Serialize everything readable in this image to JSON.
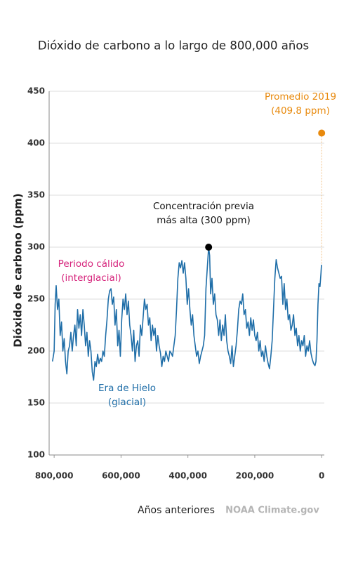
{
  "chart_data": {
    "type": "line",
    "title": "Dióxido de carbono a lo largo de 800,000 años",
    "xlabel": "Años anteriores",
    "ylabel": "Dióxido de carbono (ppm)",
    "source": "NOAA Climate.gov",
    "xlim": [
      815000,
      -8000
    ],
    "ylim": [
      100,
      450
    ],
    "xticks": [
      {
        "value": 800000,
        "label": "800,000"
      },
      {
        "value": 600000,
        "label": "600,000"
      },
      {
        "value": 400000,
        "label": "400,000"
      },
      {
        "value": 200000,
        "label": "200,000"
      },
      0
    ],
    "yticks": [
      100,
      150,
      200,
      250,
      300,
      350,
      400,
      450
    ],
    "grid": true,
    "x": [
      805000,
      800000,
      797000,
      794000,
      790000,
      786000,
      782000,
      778000,
      774000,
      770000,
      766000,
      762000,
      758000,
      754000,
      750000,
      746000,
      742000,
      738000,
      734000,
      730000,
      726000,
      722000,
      718000,
      714000,
      710000,
      706000,
      702000,
      698000,
      694000,
      690000,
      686000,
      682000,
      678000,
      674000,
      670000,
      666000,
      662000,
      658000,
      654000,
      650000,
      646000,
      642000,
      638000,
      634000,
      630000,
      626000,
      622000,
      618000,
      614000,
      610000,
      606000,
      602000,
      598000,
      594000,
      590000,
      586000,
      582000,
      578000,
      574000,
      570000,
      566000,
      562000,
      558000,
      554000,
      550000,
      546000,
      542000,
      538000,
      534000,
      530000,
      526000,
      522000,
      518000,
      514000,
      510000,
      506000,
      502000,
      498000,
      494000,
      490000,
      486000,
      482000,
      478000,
      474000,
      470000,
      466000,
      462000,
      458000,
      454000,
      450000,
      446000,
      442000,
      438000,
      434000,
      430000,
      426000,
      422000,
      418000,
      414000,
      410000,
      406000,
      402000,
      398000,
      394000,
      390000,
      386000,
      382000,
      378000,
      374000,
      370000,
      366000,
      362000,
      358000,
      354000,
      350000,
      346000,
      342000,
      338000,
      335000,
      332000,
      328000,
      324000,
      320000,
      316000,
      312000,
      308000,
      304000,
      300000,
      296000,
      292000,
      288000,
      284000,
      280000,
      276000,
      272000,
      268000,
      264000,
      260000,
      256000,
      252000,
      248000,
      244000,
      240000,
      236000,
      232000,
      228000,
      224000,
      220000,
      216000,
      212000,
      208000,
      204000,
      200000,
      196000,
      192000,
      188000,
      184000,
      180000,
      176000,
      172000,
      168000,
      164000,
      160000,
      156000,
      152000,
      148000,
      144000,
      140000,
      136000,
      132000,
      128000,
      124000,
      120000,
      116000,
      112000,
      108000,
      104000,
      100000,
      96000,
      92000,
      88000,
      84000,
      80000,
      76000,
      72000,
      68000,
      64000,
      60000,
      56000,
      52000,
      48000,
      44000,
      40000,
      36000,
      32000,
      28000,
      24000,
      20000,
      17000,
      14000,
      11000,
      8000,
      5000,
      2000,
      500
    ],
    "series": [
      {
        "color": "#1f6ea8",
        "values": [
          190,
          200,
          245,
          263,
          240,
          250,
          215,
          228,
          200,
          212,
          190,
          178,
          200,
          205,
          218,
          200,
          215,
          225,
          205,
          240,
          222,
          235,
          215,
          240,
          225,
          205,
          218,
          195,
          210,
          200,
          180,
          172,
          190,
          185,
          197,
          188,
          193,
          190,
          200,
          195,
          215,
          230,
          250,
          258,
          260,
          245,
          252,
          225,
          240,
          205,
          220,
          195,
          230,
          250,
          240,
          255,
          235,
          248,
          225,
          215,
          200,
          220,
          190,
          205,
          210,
          195,
          225,
          215,
          232,
          250,
          240,
          245,
          225,
          232,
          210,
          225,
          215,
          222,
          200,
          215,
          205,
          198,
          185,
          195,
          190,
          200,
          195,
          190,
          200,
          198,
          195,
          205,
          215,
          240,
          270,
          285,
          280,
          287,
          275,
          285,
          270,
          245,
          260,
          240,
          225,
          235,
          215,
          205,
          195,
          200,
          188,
          195,
          200,
          205,
          215,
          260,
          280,
          300,
          292,
          255,
          270,
          245,
          255,
          235,
          230,
          215,
          230,
          210,
          225,
          215,
          235,
          210,
          200,
          195,
          188,
          205,
          185,
          195,
          205,
          220,
          240,
          248,
          245,
          255,
          235,
          240,
          222,
          228,
          215,
          232,
          220,
          230,
          215,
          210,
          218,
          200,
          210,
          195,
          200,
          190,
          205,
          195,
          188,
          183,
          195,
          210,
          240,
          270,
          288,
          280,
          275,
          270,
          272,
          245,
          265,
          240,
          250,
          230,
          235,
          220,
          225,
          235,
          215,
          222,
          205,
          215,
          200,
          210,
          205,
          215,
          195,
          205,
          200,
          210,
          198,
          192,
          188,
          186,
          190,
          210,
          245,
          265,
          262,
          275,
          283
        ]
      }
    ],
    "points": [
      {
        "x": 338000,
        "value": 300,
        "color": "#000000",
        "label": [
          "Concentración previa",
          "más alta (300 ppm)"
        ],
        "label_color": "#111111"
      },
      {
        "x": 0,
        "value": 409.8,
        "color": "#e8890c",
        "label": [
          "Promedio 2019",
          "(409.8 ppm)"
        ],
        "label_color": "#e8890c"
      }
    ],
    "annotations": [
      {
        "lines": [
          "Periodo cálido",
          "(interglacial)"
        ],
        "color": "#d6247c"
      },
      {
        "lines": [
          "Era de Hielo",
          "(glacial)"
        ],
        "color": "#1f6ea8"
      }
    ]
  }
}
